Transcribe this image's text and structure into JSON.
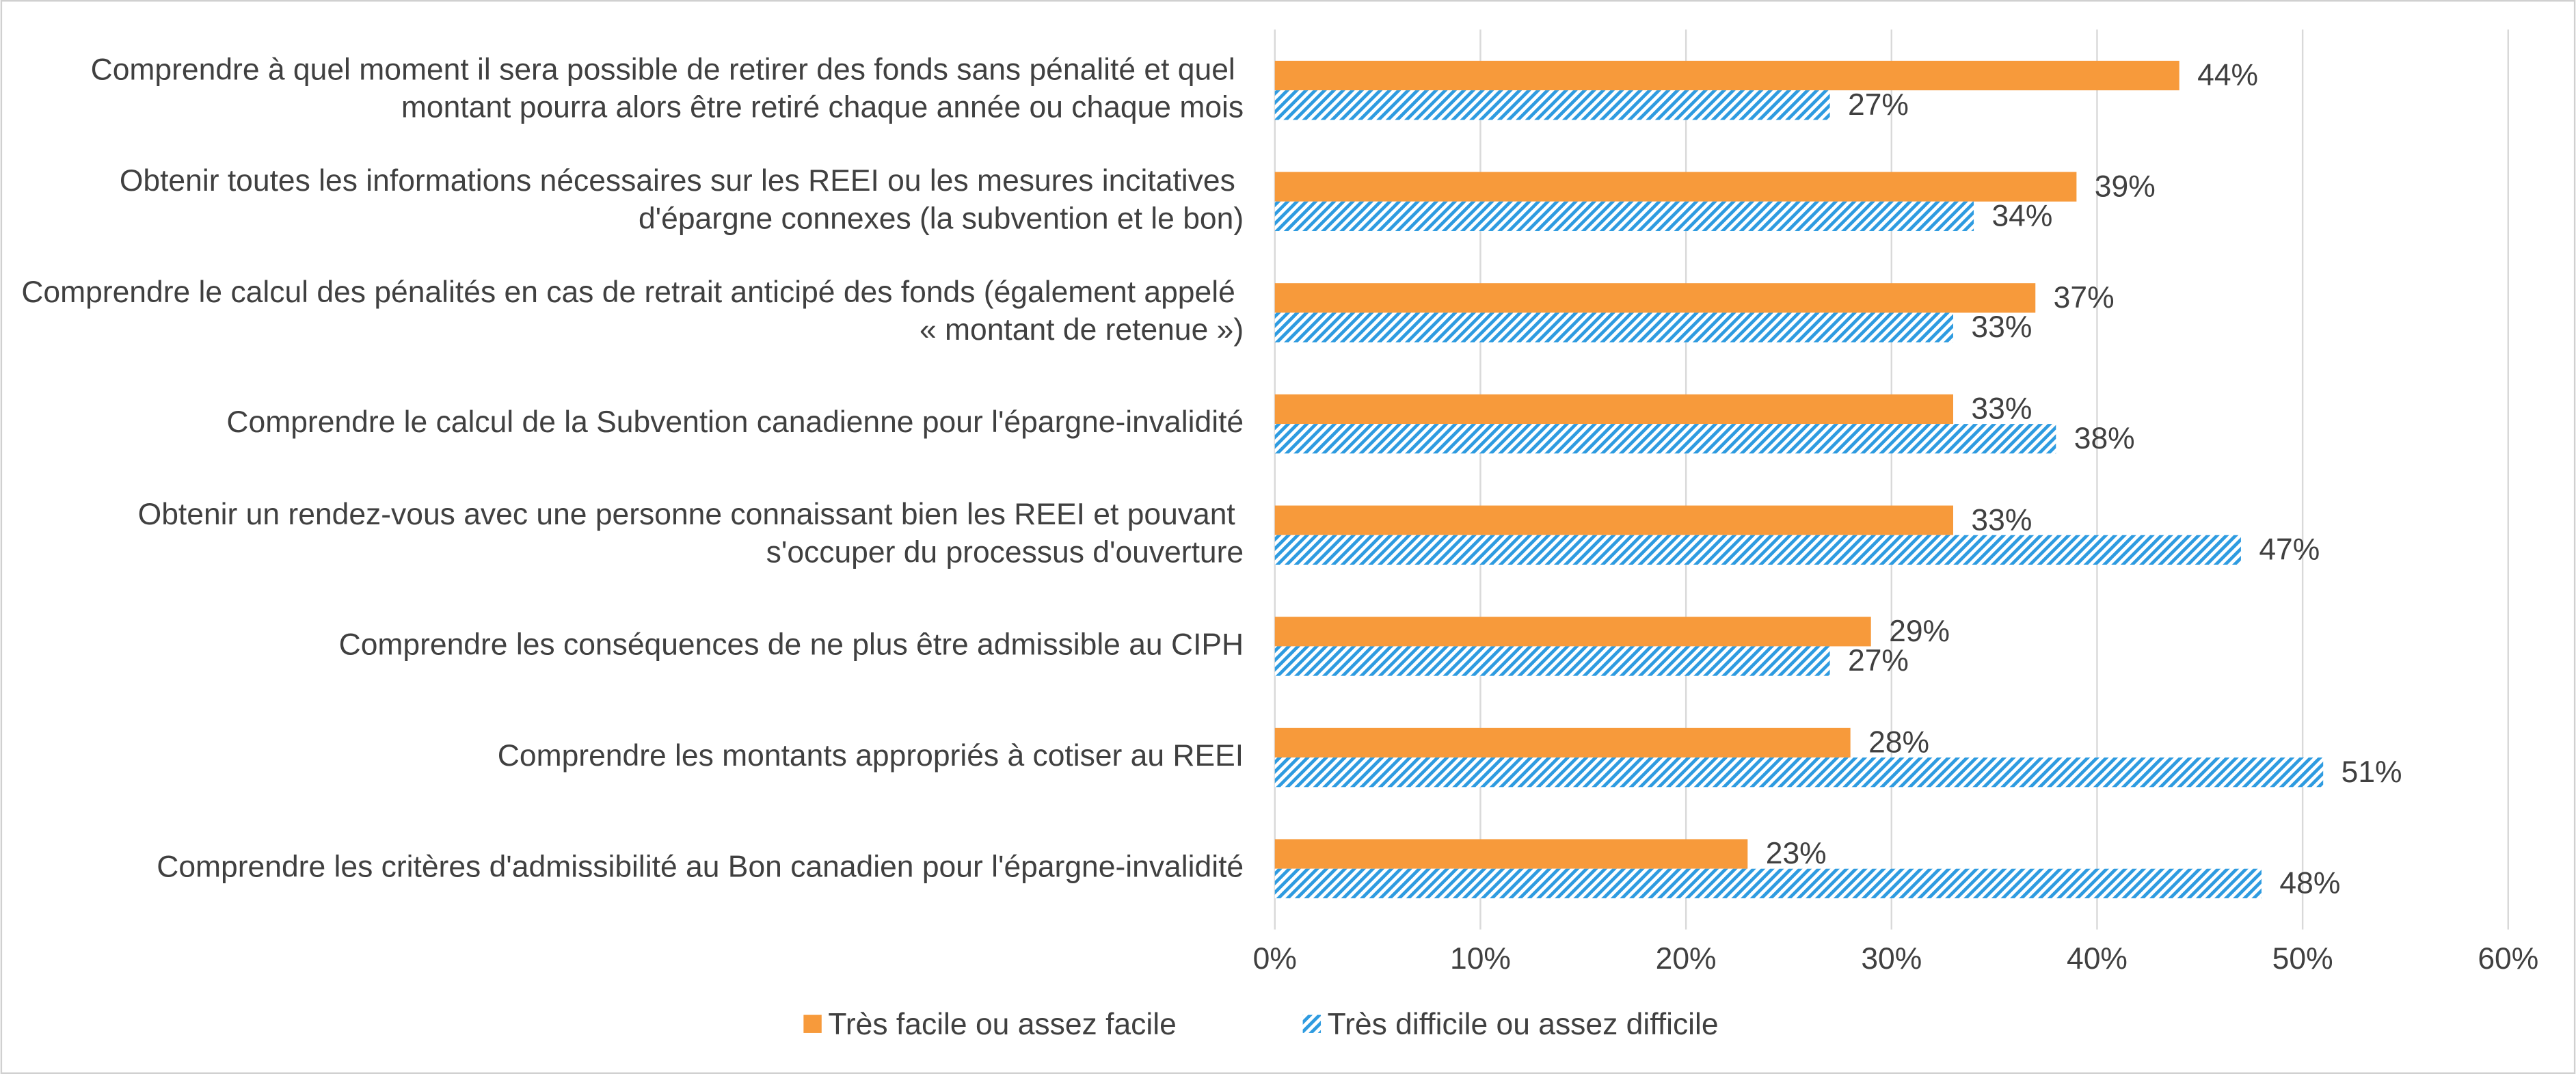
{
  "chart_data": {
    "type": "hbar",
    "categories": [
      "Comprendre à quel moment il sera possible de retirer des fonds sans pénalité et quel montant pourra alors être retiré chaque année ou chaque mois",
      "Obtenir toutes les informations nécessaires sur les REEI ou les mesures incitatives d'épargne connexes (la subvention et le bon)",
      "Comprendre le calcul des pénalités en cas de retrait anticipé des fonds (également appelé « montant de retenue »)",
      "Comprendre le calcul de la Subvention canadienne pour l'épargne-invalidité",
      "Obtenir un rendez-vous avec une personne connaissant bien les REEI et pouvant s'occuper du processus d'ouverture",
      "Comprendre les conséquences de ne plus être admissible au CIPH",
      "Comprendre les montants appropriés à cotiser au REEI",
      "Comprendre les critères d'admissibilité au Bon canadien pour l'épargne-invalidité"
    ],
    "series": [
      {
        "name": "Très facile ou assez facile",
        "color": "#f79a3b",
        "pattern": "solid",
        "values": [
          44,
          39,
          37,
          33,
          33,
          29,
          28,
          23
        ],
        "value_labels": [
          "44%",
          "39%",
          "37%",
          "33%",
          "33%",
          "29%",
          "28%",
          "23%"
        ]
      },
      {
        "name": "Très difficile ou assez difficile",
        "color": "#2e9be0",
        "pattern": "hatch",
        "values": [
          27,
          34,
          33,
          38,
          47,
          27,
          51,
          48
        ],
        "value_labels": [
          "27%",
          "34%",
          "33%",
          "38%",
          "47%",
          "27%",
          "51%",
          "48%"
        ]
      }
    ],
    "xlim": [
      0,
      60
    ],
    "xticks": [
      {
        "value": 0,
        "label": "0%"
      },
      {
        "value": 10,
        "label": "10%"
      },
      {
        "value": 20,
        "label": "20%"
      },
      {
        "value": 30,
        "label": "30%"
      },
      {
        "value": 40,
        "label": "40%"
      },
      {
        "value": 50,
        "label": "50%"
      },
      {
        "value": 60,
        "label": "60%"
      }
    ],
    "grid": true,
    "legend": "bottom"
  }
}
